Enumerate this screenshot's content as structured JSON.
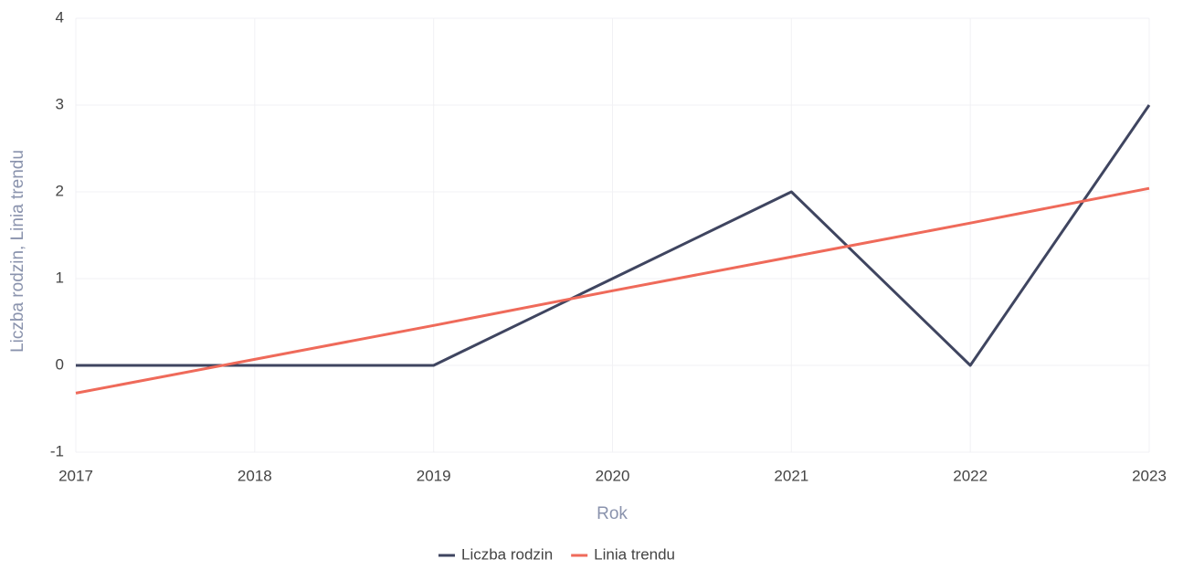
{
  "chart_data": {
    "type": "line",
    "x": [
      2017,
      2018,
      2019,
      2020,
      2021,
      2022,
      2023
    ],
    "series": [
      {
        "name": "Liczba rodzin",
        "color": "#3f4560",
        "values": [
          0,
          0,
          0,
          1,
          2,
          0,
          3
        ]
      },
      {
        "name": "Linia trendu",
        "color": "#ef6a5a",
        "values": [
          -0.32,
          0.07,
          0.46,
          0.86,
          1.25,
          1.64,
          2.04
        ]
      }
    ],
    "xlabel": "Rok",
    "ylabel": "Liczba rodzin, Linia trendu",
    "xlim": [
      2017,
      2023
    ],
    "xticks": [
      2017,
      2018,
      2019,
      2020,
      2021,
      2022,
      2023
    ],
    "ylim": [
      -1,
      4
    ],
    "yticks": [
      -1,
      0,
      1,
      2,
      3,
      4
    ],
    "grid": true,
    "legend": "bottom"
  }
}
